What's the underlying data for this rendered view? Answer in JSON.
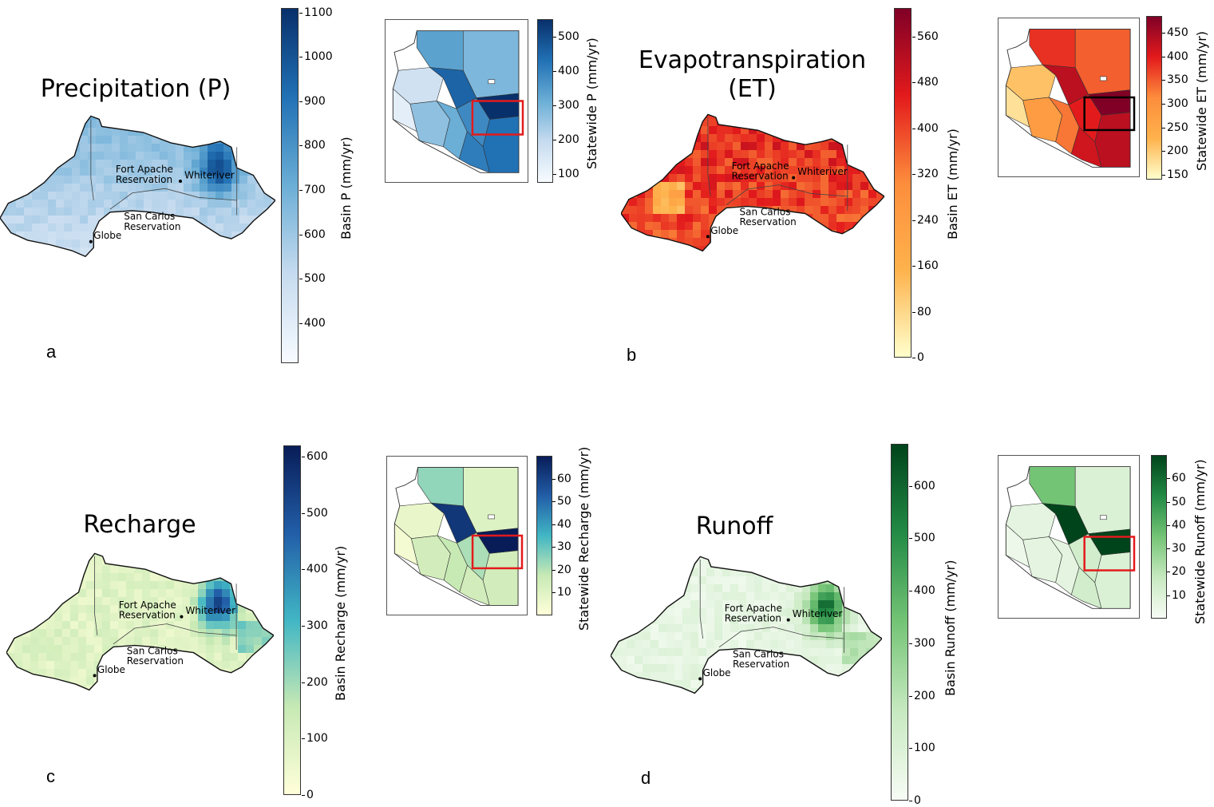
{
  "panels": [
    {
      "letter": "a",
      "title": "Precipitation (P)",
      "palette": [
        "#f7fbff",
        "#c6dbef",
        "#6baed6",
        "#2171b5",
        "#08306b"
      ],
      "basin_colorbar": {
        "label": "Basin P (mm/yr)",
        "ticks": [
          "1100",
          "1000",
          "900",
          "800",
          "700",
          "600",
          "500",
          "400"
        ],
        "range": [
          310,
          1110
        ],
        "values": [
          1100,
          1000,
          900,
          800,
          700,
          600,
          500,
          400
        ]
      },
      "statewide_colorbar": {
        "label": "Statewide P (mm/yr)",
        "ticks": [
          "500",
          "400",
          "300",
          "200",
          "100"
        ],
        "range": [
          75,
          550
        ],
        "values": [
          500,
          400,
          300,
          200,
          100
        ]
      },
      "highlight_color": "#e31a1c"
    },
    {
      "letter": "b",
      "title": "Evapotranspiration (ET)",
      "palette": [
        "#ffffcc",
        "#feb24c",
        "#fd8d3c",
        "#e31a1c",
        "#800026"
      ],
      "basin_colorbar": {
        "label": "Basin ET (mm/yr)",
        "ticks": [
          "560",
          "480",
          "400",
          "320",
          "240",
          "160",
          "80",
          "0"
        ],
        "range": [
          0,
          610
        ],
        "values": [
          560,
          480,
          400,
          320,
          240,
          160,
          80,
          0
        ]
      },
      "statewide_colorbar": {
        "label": "Statewide ET (mm/yr)",
        "ticks": [
          "450",
          "400",
          "350",
          "300",
          "250",
          "200",
          "150"
        ],
        "range": [
          140,
          485
        ],
        "values": [
          450,
          400,
          350,
          300,
          250,
          200,
          150
        ]
      },
      "highlight_color": "#000000"
    },
    {
      "letter": "c",
      "title": "Recharge",
      "palette": [
        "#ffffd9",
        "#c7e9b4",
        "#41b6c4",
        "#225ea8",
        "#081d58"
      ],
      "basin_colorbar": {
        "label": "Basin Recharge (mm/yr)",
        "ticks": [
          "600",
          "500",
          "400",
          "300",
          "200",
          "100",
          "0"
        ],
        "range": [
          0,
          620
        ],
        "values": [
          600,
          500,
          400,
          300,
          200,
          100,
          0
        ]
      },
      "statewide_colorbar": {
        "label": "Statewide Recharge (mm/yr)",
        "ticks": [
          "60",
          "50",
          "40",
          "30",
          "20",
          "10"
        ],
        "range": [
          0,
          70
        ],
        "values": [
          60,
          50,
          40,
          30,
          20,
          10
        ]
      },
      "highlight_color": "#e31a1c"
    },
    {
      "letter": "d",
      "title": "Runoff",
      "palette": [
        "#f7fcf5",
        "#c7e9c0",
        "#74c476",
        "#238b45",
        "#00441b"
      ],
      "basin_colorbar": {
        "label": "Basin Runoff (mm/yr)",
        "ticks": [
          "600",
          "500",
          "400",
          "300",
          "200",
          "100",
          "0"
        ],
        "range": [
          0,
          680
        ],
        "values": [
          600,
          500,
          400,
          300,
          200,
          100,
          0
        ]
      },
      "statewide_colorbar": {
        "label": "Statewide Runoff (mm/yr)",
        "ticks": [
          "60",
          "50",
          "40",
          "30",
          "20",
          "10"
        ],
        "range": [
          0,
          70
        ],
        "values": [
          60,
          50,
          40,
          30,
          20,
          10
        ]
      },
      "highlight_color": "#e31a1c"
    }
  ],
  "places": {
    "fort_apache_1": "Fort Apache",
    "fort_apache_2": "Reservation",
    "san_carlos_1": "San Carlos",
    "san_carlos_2": "Reservation",
    "whiteriver": "Whiteriver",
    "globe": "Globe"
  }
}
